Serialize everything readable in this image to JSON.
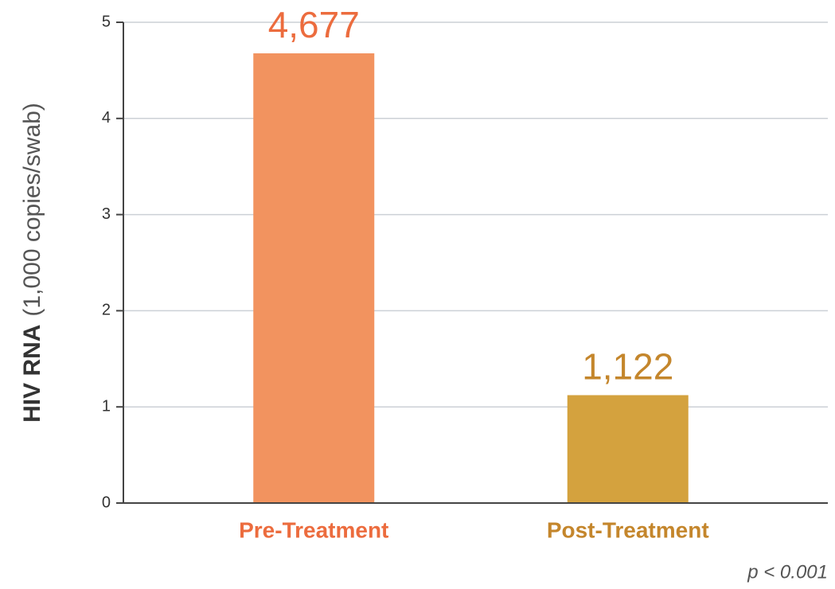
{
  "chart_data": {
    "type": "bar",
    "y_label_bold": "HIV RNA",
    "y_label_unit": "(1,000 copies/swab)",
    "categories": [
      "Pre-Treatment",
      "Post-Treatment"
    ],
    "values": [
      4.677,
      1.122
    ],
    "value_labels": [
      "4,677",
      "1,122"
    ],
    "colors": [
      "#f2935f",
      "#d4a23e"
    ],
    "label_colors": [
      "#ec6c3e",
      "#c4862c"
    ],
    "ylim": [
      0,
      5
    ],
    "yticks": [
      0,
      1,
      2,
      3,
      4,
      5
    ],
    "grid": true,
    "annotation": "p < 0.001"
  }
}
